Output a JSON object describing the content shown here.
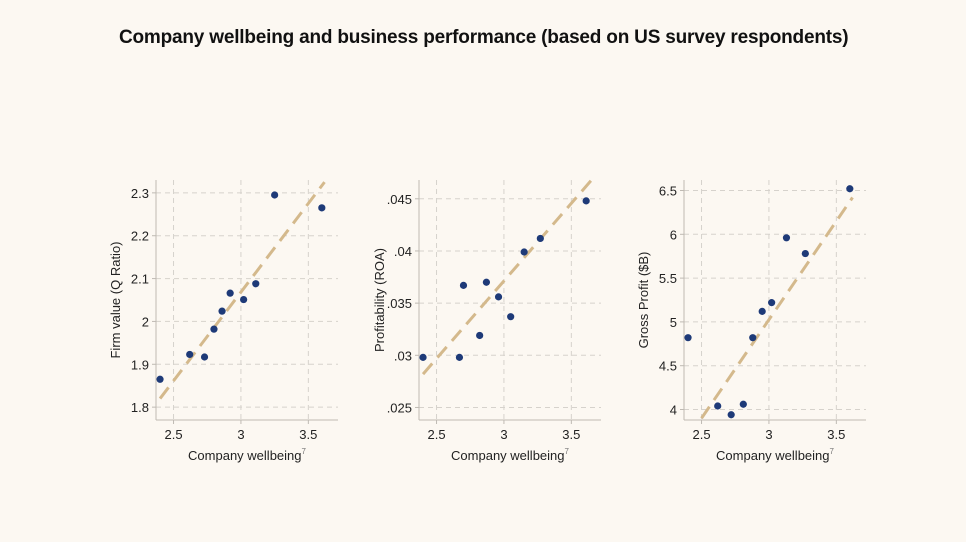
{
  "title": "Company wellbeing and business performance (based on US survey respondents)",
  "chart_data": [
    {
      "type": "scatter",
      "xlabel": "Company wellbeing",
      "xlabel_sup": "7",
      "ylabel": "Firm value (Q Ratio)",
      "xlim": [
        2.37,
        3.72
      ],
      "ylim": [
        1.77,
        2.33
      ],
      "xticks": [
        2.5,
        3,
        3.5
      ],
      "xtick_labels": [
        "2.5",
        "3",
        "3.5"
      ],
      "yticks": [
        1.8,
        1.9,
        2,
        2.1,
        2.2,
        2.3
      ],
      "ytick_labels": [
        "1.8",
        "1.9",
        "2",
        "2.1",
        "2.2",
        "2.3"
      ],
      "points": [
        {
          "x": 2.4,
          "y": 1.865
        },
        {
          "x": 2.62,
          "y": 1.923
        },
        {
          "x": 2.73,
          "y": 1.917
        },
        {
          "x": 2.8,
          "y": 1.982
        },
        {
          "x": 2.86,
          "y": 2.024
        },
        {
          "x": 2.92,
          "y": 2.066
        },
        {
          "x": 3.02,
          "y": 2.051
        },
        {
          "x": 3.11,
          "y": 2.088
        },
        {
          "x": 3.25,
          "y": 2.295
        },
        {
          "x": 3.6,
          "y": 2.265
        }
      ],
      "trend": [
        {
          "x": 2.4,
          "y": 1.82
        },
        {
          "x": 3.62,
          "y": 2.325
        }
      ],
      "point_color": "#1e3a78",
      "trend_color": "#d4b98c"
    },
    {
      "type": "scatter",
      "xlabel": "Company wellbeing",
      "xlabel_sup": "7",
      "ylabel": "Profitability (ROA)",
      "xlim": [
        2.37,
        3.72
      ],
      "ylim": [
        0.0238,
        0.0468
      ],
      "xticks": [
        2.5,
        3,
        3.5
      ],
      "xtick_labels": [
        "2.5",
        "3",
        "3.5"
      ],
      "yticks": [
        0.025,
        0.03,
        0.035,
        0.04,
        0.045
      ],
      "ytick_labels": [
        ".025",
        ".03",
        ".035",
        ".04",
        ".045"
      ],
      "points": [
        {
          "x": 2.4,
          "y": 0.0298
        },
        {
          "x": 2.67,
          "y": 0.0298
        },
        {
          "x": 2.7,
          "y": 0.0367
        },
        {
          "x": 2.82,
          "y": 0.0319
        },
        {
          "x": 2.87,
          "y": 0.037
        },
        {
          "x": 2.96,
          "y": 0.0356
        },
        {
          "x": 3.05,
          "y": 0.0337
        },
        {
          "x": 3.15,
          "y": 0.0399
        },
        {
          "x": 3.27,
          "y": 0.0412
        },
        {
          "x": 3.61,
          "y": 0.0448
        }
      ],
      "trend": [
        {
          "x": 2.4,
          "y": 0.0282
        },
        {
          "x": 3.65,
          "y": 0.0468
        }
      ],
      "point_color": "#1e3a78",
      "trend_color": "#d4b98c"
    },
    {
      "type": "scatter",
      "xlabel": "Company wellbeing",
      "xlabel_sup": "7",
      "ylabel": "Gross Profit ($B)",
      "xlim": [
        2.37,
        3.72
      ],
      "ylim": [
        3.88,
        6.62
      ],
      "xticks": [
        2.5,
        3,
        3.5
      ],
      "xtick_labels": [
        "2.5",
        "3",
        "3.5"
      ],
      "yticks": [
        4,
        4.5,
        5,
        5.5,
        6,
        6.5
      ],
      "ytick_labels": [
        "4",
        "4.5",
        "5",
        "5.5",
        "6",
        "6.5"
      ],
      "points": [
        {
          "x": 2.4,
          "y": 4.82
        },
        {
          "x": 2.62,
          "y": 4.04
        },
        {
          "x": 2.72,
          "y": 3.94
        },
        {
          "x": 2.81,
          "y": 4.06
        },
        {
          "x": 2.88,
          "y": 4.82
        },
        {
          "x": 2.95,
          "y": 5.12
        },
        {
          "x": 3.02,
          "y": 5.22
        },
        {
          "x": 3.13,
          "y": 5.96
        },
        {
          "x": 3.27,
          "y": 5.78
        },
        {
          "x": 3.6,
          "y": 6.52
        }
      ],
      "trend": [
        {
          "x": 2.5,
          "y": 3.9
        },
        {
          "x": 3.62,
          "y": 6.42
        }
      ],
      "point_color": "#1e3a78",
      "trend_color": "#d4b98c"
    }
  ]
}
